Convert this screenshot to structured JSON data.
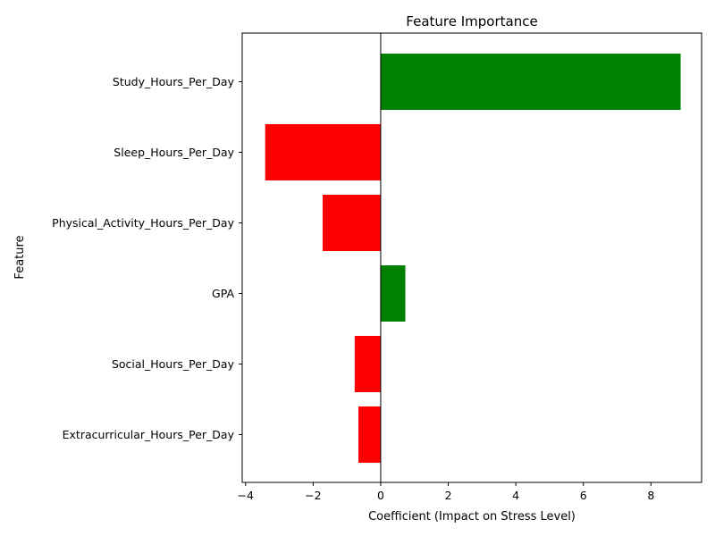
{
  "chart_data": {
    "type": "bar",
    "orientation": "horizontal",
    "title": "Feature Importance",
    "xlabel": "Coefficient (Impact on Stress Level)",
    "ylabel": "Feature",
    "categories": [
      "Study_Hours_Per_Day",
      "Sleep_Hours_Per_Day",
      "Physical_Activity_Hours_Per_Day",
      "GPA",
      "Social_Hours_Per_Day",
      "Extracurricular_Hours_Per_Day"
    ],
    "values": [
      8.88,
      -3.42,
      -1.72,
      0.73,
      -0.77,
      -0.66
    ],
    "xlim": [
      -4.1,
      9.5
    ],
    "xticks": [
      -4,
      -2,
      0,
      2,
      4,
      6,
      8
    ],
    "xtick_labels": [
      "−4",
      "−2",
      "0",
      "2",
      "4",
      "6",
      "8"
    ],
    "positive_color": "#008000",
    "negative_color": "#ff0000",
    "zero_line": true,
    "grid": false
  }
}
